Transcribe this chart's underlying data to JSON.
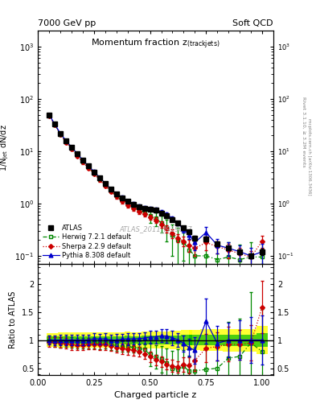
{
  "title_main": "Momentum fraction z$_{\\mathrm{(track jets)}}$",
  "header_left": "7000 GeV pp",
  "header_right": "Soft QCD",
  "ylabel_main": "1/N$_{\\mathrm{jet}}$ dN/dz",
  "ylabel_ratio": "Ratio to ATLAS",
  "xlabel": "Charged particle z",
  "right_label1": "Rivet 3.1.10, ≥ 3.2M events",
  "right_label2": "mcplots.cern.ch [arXiv:1306.3436]",
  "watermark": "ATLAS_2011_I919017",
  "ylim_main": [
    0.07,
    2000
  ],
  "ylim_ratio": [
    0.38,
    2.35
  ],
  "xlim": [
    0.0,
    1.05
  ],
  "x_pts": [
    0.05,
    0.075,
    0.1,
    0.125,
    0.15,
    0.175,
    0.2,
    0.225,
    0.25,
    0.275,
    0.3,
    0.325,
    0.35,
    0.375,
    0.4,
    0.425,
    0.45,
    0.475,
    0.5,
    0.525,
    0.55,
    0.575,
    0.6,
    0.625,
    0.65,
    0.675,
    0.7,
    0.75,
    0.8,
    0.85,
    0.9,
    0.95,
    1.0
  ],
  "atlas_y": [
    50,
    33,
    22,
    16,
    12,
    9.0,
    6.8,
    5.2,
    4.0,
    3.1,
    2.4,
    1.9,
    1.55,
    1.3,
    1.1,
    0.98,
    0.88,
    0.82,
    0.78,
    0.74,
    0.65,
    0.58,
    0.5,
    0.42,
    0.34,
    0.29,
    0.22,
    0.21,
    0.17,
    0.14,
    0.12,
    0.1,
    0.12
  ],
  "atlas_yerr_lo": [
    3,
    2,
    1.5,
    1.1,
    0.8,
    0.6,
    0.45,
    0.35,
    0.27,
    0.21,
    0.16,
    0.13,
    0.11,
    0.09,
    0.08,
    0.07,
    0.06,
    0.06,
    0.06,
    0.055,
    0.05,
    0.045,
    0.04,
    0.035,
    0.03,
    0.025,
    0.02,
    0.02,
    0.016,
    0.014,
    0.012,
    0.01,
    0.015
  ],
  "atlas_yerr_hi": [
    3,
    2,
    1.5,
    1.1,
    0.8,
    0.6,
    0.45,
    0.35,
    0.27,
    0.21,
    0.16,
    0.13,
    0.11,
    0.09,
    0.08,
    0.07,
    0.06,
    0.06,
    0.06,
    0.055,
    0.05,
    0.045,
    0.04,
    0.035,
    0.03,
    0.025,
    0.02,
    0.02,
    0.016,
    0.014,
    0.012,
    0.01,
    0.015
  ],
  "herwig_y": [
    50,
    32,
    21,
    15.5,
    11.5,
    8.5,
    6.4,
    4.9,
    3.8,
    2.9,
    2.25,
    1.75,
    1.4,
    1.15,
    0.98,
    0.85,
    0.75,
    0.68,
    0.58,
    0.52,
    0.43,
    0.34,
    0.25,
    0.2,
    0.18,
    0.13,
    0.1,
    0.1,
    0.085,
    0.095,
    0.085,
    0.095,
    0.095
  ],
  "herwig_yerr_lo": [
    3,
    2,
    1.5,
    1.1,
    0.8,
    0.6,
    0.45,
    0.35,
    0.27,
    0.21,
    0.16,
    0.13,
    0.11,
    0.09,
    0.08,
    0.07,
    0.06,
    0.06,
    0.15,
    0.15,
    0.15,
    0.15,
    0.15,
    0.15,
    0.1,
    0.08,
    0.09,
    0.095,
    0.08,
    0.09,
    0.08,
    0.09,
    0.09
  ],
  "herwig_yerr_hi": [
    3,
    2,
    1.5,
    1.1,
    0.8,
    0.6,
    0.45,
    0.35,
    0.27,
    0.21,
    0.16,
    0.13,
    0.11,
    0.09,
    0.08,
    0.07,
    0.06,
    0.06,
    0.15,
    0.15,
    0.15,
    0.15,
    0.15,
    0.15,
    0.1,
    0.08,
    0.09,
    0.095,
    0.08,
    0.09,
    0.08,
    0.09,
    0.09
  ],
  "pythia_y": [
    50,
    33,
    22,
    16,
    12,
    9.0,
    6.8,
    5.2,
    4.1,
    3.15,
    2.45,
    1.9,
    1.55,
    1.32,
    1.12,
    1.0,
    0.9,
    0.85,
    0.82,
    0.78,
    0.7,
    0.62,
    0.52,
    0.42,
    0.32,
    0.25,
    0.18,
    0.28,
    0.16,
    0.14,
    0.12,
    0.1,
    0.12
  ],
  "pythia_yerr_lo": [
    3,
    2,
    1.5,
    1.1,
    0.8,
    0.6,
    0.45,
    0.35,
    0.27,
    0.21,
    0.16,
    0.13,
    0.11,
    0.09,
    0.08,
    0.07,
    0.06,
    0.06,
    0.06,
    0.06,
    0.05,
    0.05,
    0.05,
    0.04,
    0.04,
    0.04,
    0.05,
    0.08,
    0.05,
    0.04,
    0.04,
    0.04,
    0.05
  ],
  "pythia_yerr_hi": [
    3,
    2,
    1.5,
    1.1,
    0.8,
    0.6,
    0.45,
    0.35,
    0.27,
    0.21,
    0.16,
    0.13,
    0.11,
    0.09,
    0.08,
    0.07,
    0.06,
    0.06,
    0.06,
    0.06,
    0.05,
    0.05,
    0.05,
    0.04,
    0.04,
    0.04,
    0.05,
    0.08,
    0.05,
    0.04,
    0.04,
    0.04,
    0.05
  ],
  "sherpa_y": [
    48,
    32,
    21,
    15,
    11,
    8.2,
    6.2,
    4.8,
    3.7,
    2.85,
    2.2,
    1.7,
    1.35,
    1.1,
    0.92,
    0.8,
    0.7,
    0.62,
    0.55,
    0.48,
    0.4,
    0.33,
    0.27,
    0.22,
    0.19,
    0.16,
    0.14,
    0.18,
    0.15,
    0.13,
    0.11,
    0.095,
    0.19
  ],
  "sherpa_yerr_lo": [
    3,
    2,
    1.5,
    1.1,
    0.8,
    0.6,
    0.45,
    0.35,
    0.27,
    0.21,
    0.16,
    0.13,
    0.11,
    0.09,
    0.08,
    0.07,
    0.06,
    0.06,
    0.06,
    0.06,
    0.05,
    0.05,
    0.05,
    0.04,
    0.04,
    0.04,
    0.04,
    0.05,
    0.04,
    0.04,
    0.03,
    0.03,
    0.05
  ],
  "sherpa_yerr_hi": [
    3,
    2,
    1.5,
    1.1,
    0.8,
    0.6,
    0.45,
    0.35,
    0.27,
    0.21,
    0.16,
    0.13,
    0.11,
    0.09,
    0.08,
    0.07,
    0.06,
    0.06,
    0.06,
    0.06,
    0.05,
    0.05,
    0.05,
    0.04,
    0.04,
    0.04,
    0.04,
    0.05,
    0.04,
    0.04,
    0.03,
    0.03,
    0.05
  ],
  "color_atlas": "#000000",
  "color_herwig": "#008800",
  "color_pythia": "#0000cc",
  "color_sherpa": "#cc0000",
  "band_yellow": "#ffff00",
  "band_green": "#00bb00",
  "legend_entries": [
    "ATLAS",
    "Herwig 7.2.1 default",
    "Pythia 8.308 default",
    "Sherpa 2.2.9 default"
  ]
}
